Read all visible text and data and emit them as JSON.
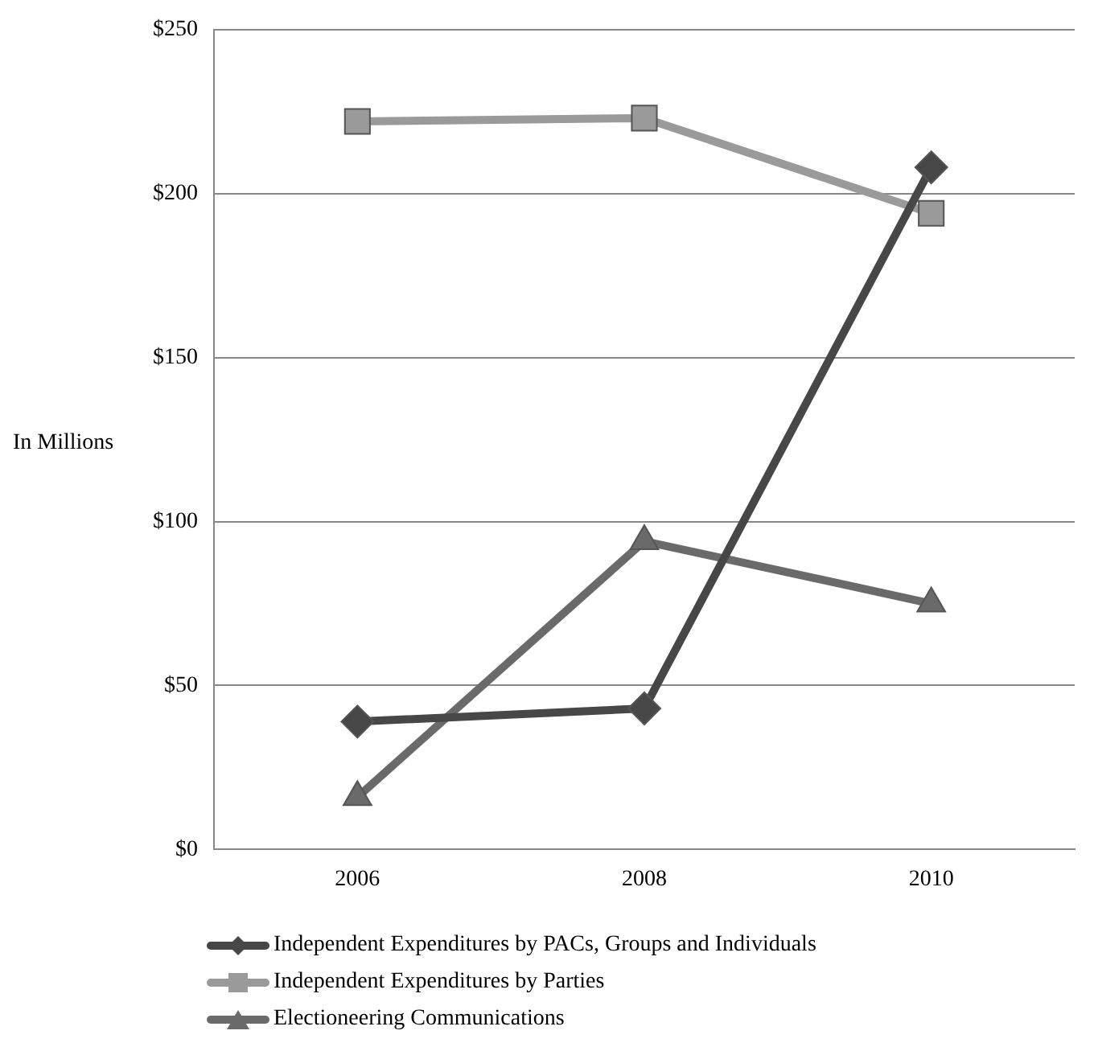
{
  "chart_data": {
    "type": "line",
    "ylabel": "In Millions",
    "categories": [
      "2006",
      "2008",
      "2010"
    ],
    "series": [
      {
        "name": "Independent Expenditures by PACs, Groups and Individuals",
        "color": "#474747",
        "marker": "diamond",
        "values": [
          39,
          43,
          208
        ]
      },
      {
        "name": "Independent Expenditures by Parties",
        "color": "#9a9a9a",
        "marker": "square",
        "values": [
          222,
          223,
          194
        ]
      },
      {
        "name": "Electioneering Communications",
        "color": "#6a6a6a",
        "marker": "triangle",
        "values": [
          16,
          94,
          75
        ]
      }
    ],
    "ylim": [
      0,
      250
    ],
    "yticks": [
      {
        "value": 0,
        "label": "$0"
      },
      {
        "value": 50,
        "label": "$50"
      },
      {
        "value": 100,
        "label": "$100"
      },
      {
        "value": 150,
        "label": "$150"
      },
      {
        "value": 200,
        "label": "$200"
      },
      {
        "value": 250,
        "label": "$250"
      }
    ],
    "grid": "y",
    "legend": "bottom",
    "line_style": "solid"
  }
}
